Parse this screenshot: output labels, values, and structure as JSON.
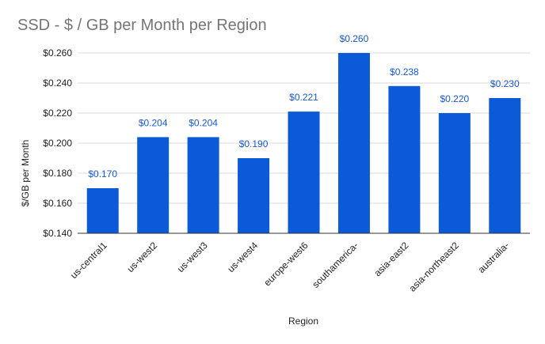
{
  "chart_data": {
    "type": "bar",
    "title": "SSD - $ / GB per Month per Region",
    "xlabel": "Region",
    "ylabel": "$/GB per Month",
    "categories": [
      "us-central1",
      "us-west2",
      "us-west3",
      "us-west4",
      "europe-west6",
      "southamerica-",
      "asia-east2",
      "asia-northeast2",
      "australia-"
    ],
    "values": [
      0.17,
      0.204,
      0.204,
      0.19,
      0.221,
      0.26,
      0.238,
      0.22,
      0.23
    ],
    "data_labels": [
      "$0.170",
      "$0.204",
      "$0.204",
      "$0.190",
      "$0.221",
      "$0.260",
      "$0.238",
      "$0.220",
      "$0.230"
    ],
    "y_ticks": [
      0.14,
      0.16,
      0.18,
      0.2,
      0.22,
      0.24,
      0.26
    ],
    "y_tick_labels": [
      "$0.140",
      "$0.160",
      "$0.180",
      "$0.200",
      "$0.220",
      "$0.240",
      "$0.260"
    ],
    "ylim": [
      0.14,
      0.27
    ],
    "grid": true,
    "legend": "none",
    "bar_color": "#0b5bd9",
    "grid_color": "#d9d9d9"
  }
}
